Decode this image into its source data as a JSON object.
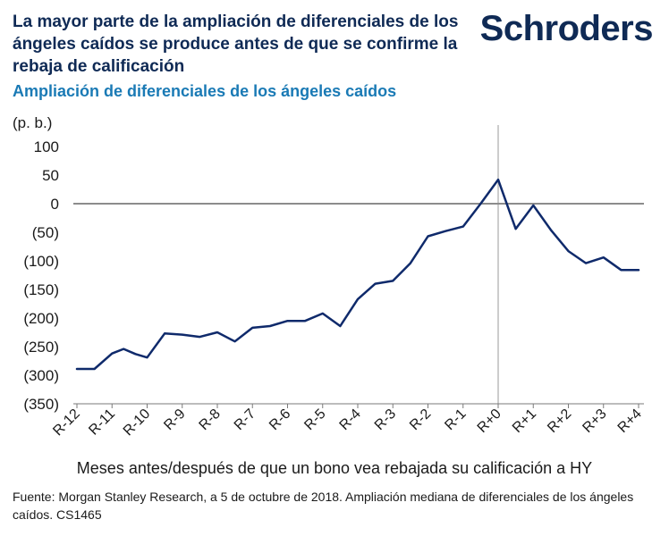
{
  "header": {
    "title": "La mayor parte de la ampliación de diferenciales de los ángeles caídos se produce antes de que se confirme la rebaja de calificación",
    "logo": "Schroders"
  },
  "chart_data": {
    "type": "line",
    "title": "Ampliación de diferenciales de los ángeles caídos",
    "ylabel": "(p. b.)",
    "xlabel": "Meses antes/después de que un bono vea rebajada su calificación a HY",
    "ylim": [
      -350,
      100
    ],
    "yticks": [
      100,
      50,
      0,
      -50,
      -100,
      -150,
      -200,
      -250,
      -300,
      -350
    ],
    "ytick_labels": [
      "100",
      "50",
      "0",
      "(50)",
      "(100)",
      "(150)",
      "(200)",
      "(250)",
      "(300)",
      "(350)"
    ],
    "categories": [
      "R-12",
      "R-11",
      "R-10",
      "R-9",
      "R-8",
      "R-7",
      "R-6",
      "R-5",
      "R-4",
      "R-3",
      "R-2",
      "R-1",
      "R+0",
      "R+1",
      "R+2",
      "R+3",
      "R+4"
    ],
    "series": [
      {
        "name": "Ampliación mediana de diferenciales",
        "color": "#0f2a6b",
        "x": [
          -12,
          -11.5,
          -11,
          -10.67,
          -10.33,
          -10,
          -9.5,
          -9,
          -8.5,
          -8,
          -7.5,
          -7,
          -6.5,
          -6,
          -5.5,
          -5,
          -4.5,
          -4,
          -3.5,
          -3,
          -2.5,
          -2,
          -1.5,
          -1,
          -0.5,
          0,
          0.5,
          1,
          1.5,
          2,
          2.5,
          3,
          3.5,
          4
        ],
        "y": [
          -289,
          -289,
          -262,
          -254,
          -263,
          -269,
          -227,
          -229,
          -233,
          -225,
          -241,
          -217,
          -214,
          -205,
          -205,
          -192,
          -214,
          -167,
          -140,
          -135,
          -104,
          -57,
          -48,
          -40,
          0,
          42,
          -44,
          -3,
          -46,
          -83,
          -104,
          -94,
          -116,
          -116
        ]
      }
    ],
    "reference_line": {
      "x": 0,
      "label": "R+0"
    },
    "grid": false
  },
  "footnote": "Fuente: Morgan Stanley Research, a 5 de octubre de 2018. Ampliación mediana de diferenciales de los ángeles caídos. CS1465"
}
